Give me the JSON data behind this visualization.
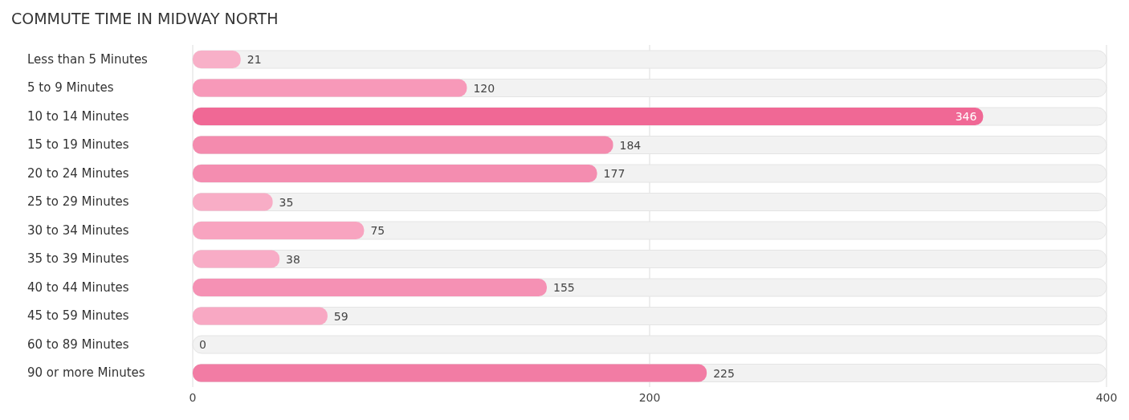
{
  "chart_data": {
    "type": "bar",
    "orientation": "horizontal",
    "title": "COMMUTE TIME IN MIDWAY NORTH",
    "categories": [
      "Less than 5 Minutes",
      "5 to 9 Minutes",
      "10 to 14 Minutes",
      "15 to 19 Minutes",
      "20 to 24 Minutes",
      "25 to 29 Minutes",
      "30 to 34 Minutes",
      "35 to 39 Minutes",
      "40 to 44 Minutes",
      "45 to 59 Minutes",
      "60 to 89 Minutes",
      "90 or more Minutes"
    ],
    "values": [
      21,
      120,
      346,
      184,
      177,
      35,
      75,
      38,
      155,
      59,
      0,
      225
    ],
    "colors": [
      "#f8b0c8",
      "#f799b9",
      "#f06895",
      "#f48bae",
      "#f48db0",
      "#f8adc6",
      "#f8a4c0",
      "#f8acc6",
      "#f591b4",
      "#f8a8c3",
      "#f9b3cb",
      "#f27ca4"
    ],
    "xlim": [
      0,
      400
    ],
    "xticks": [
      0,
      200,
      400
    ],
    "grid": "x",
    "data_labels": true
  }
}
